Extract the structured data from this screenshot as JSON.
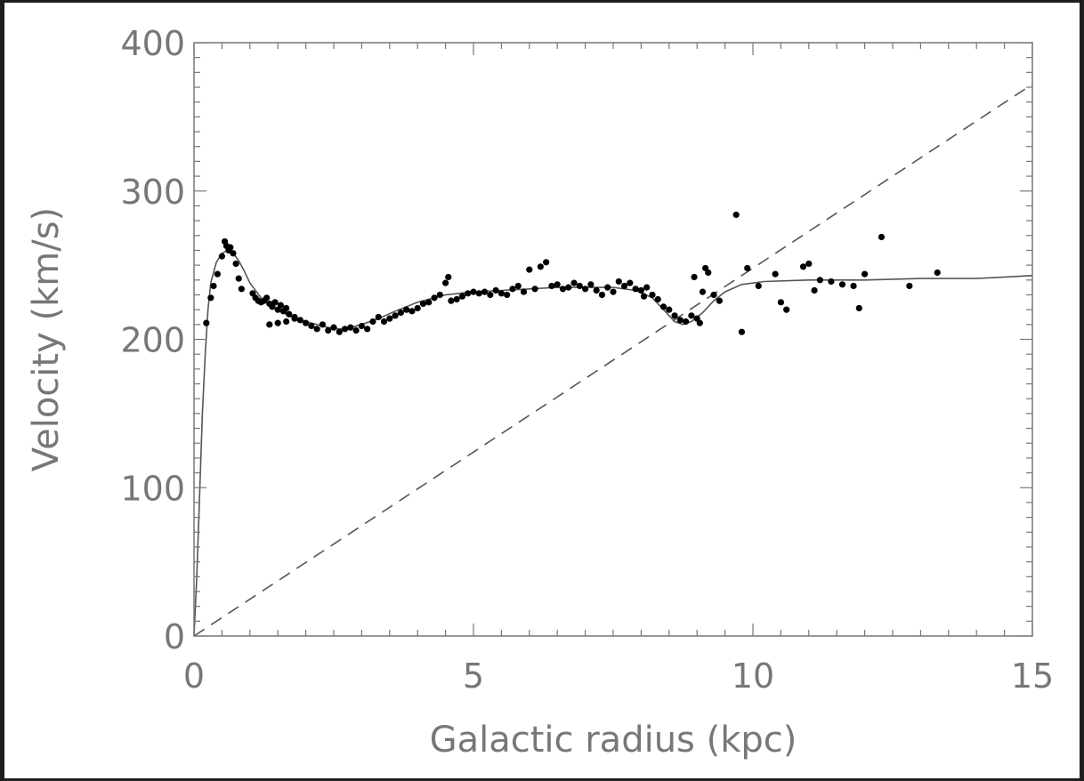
{
  "chart_data": {
    "type": "scatter",
    "title": "",
    "xlabel": "Galactic radius (kpc)",
    "ylabel": "Velocity (km/s)",
    "xlim": [
      0,
      15
    ],
    "ylim": [
      0,
      400
    ],
    "xticks": [
      "0",
      "5",
      "10",
      "15"
    ],
    "yticks": [
      "0",
      "100",
      "200",
      "300",
      "400"
    ],
    "grid": false,
    "legend": "none",
    "colors": {
      "points": "#000000",
      "lines": "#555555",
      "axes": "#777777"
    },
    "series": [
      {
        "kind": "points",
        "x": [
          0.22,
          0.3,
          0.35,
          0.42,
          0.5,
          0.55,
          0.58,
          0.62,
          0.65,
          0.7,
          0.75,
          0.8,
          0.85,
          1.05,
          1.1,
          1.15,
          1.2,
          1.25,
          1.3,
          1.35,
          1.4,
          1.45,
          1.5,
          1.55,
          1.6,
          1.65,
          1.7,
          1.8,
          1.35,
          1.5,
          1.65,
          1.8,
          1.9,
          2.0,
          2.1,
          2.2,
          2.3,
          2.4,
          2.5,
          2.6,
          2.7,
          2.8,
          2.9,
          3.0,
          3.1,
          3.2,
          3.3,
          3.4,
          3.5,
          3.6,
          3.7,
          3.8,
          3.9,
          4.0,
          4.1,
          4.2,
          4.3,
          4.4,
          4.5,
          4.55,
          4.6,
          4.7,
          4.8,
          4.9,
          5.0,
          5.1,
          5.2,
          5.3,
          5.4,
          5.5,
          5.6,
          5.7,
          5.8,
          5.9,
          6.0,
          6.1,
          6.2,
          6.3,
          6.4,
          6.5,
          6.6,
          6.7,
          6.8,
          6.9,
          7.0,
          7.1,
          7.2,
          7.3,
          7.4,
          7.5,
          7.6,
          7.7,
          7.8,
          7.9,
          8.0,
          8.05,
          8.1,
          8.2,
          8.3,
          8.4,
          8.5,
          8.6,
          8.7,
          8.8,
          8.9,
          9.0,
          9.1,
          9.2,
          9.3,
          9.4,
          8.95,
          9.05,
          9.15,
          9.7,
          9.8,
          9.9,
          10.1,
          10.4,
          10.5,
          10.6,
          10.9,
          11.0,
          11.1,
          11.2,
          11.4,
          11.6,
          11.8,
          11.9,
          12.0,
          12.3,
          12.8,
          13.3
        ],
        "y": [
          211,
          228,
          236,
          244,
          256,
          266,
          263,
          260,
          262,
          258,
          251,
          241,
          234,
          231,
          228,
          226,
          225,
          226,
          228,
          224,
          222,
          225,
          220,
          223,
          219,
          221,
          217,
          215,
          210,
          211,
          212,
          214,
          213,
          211,
          209,
          207,
          210,
          206,
          208,
          205,
          207,
          208,
          206,
          209,
          207,
          212,
          215,
          212,
          214,
          216,
          218,
          220,
          219,
          221,
          224,
          225,
          228,
          230,
          238,
          242,
          226,
          227,
          229,
          231,
          232,
          231,
          232,
          230,
          233,
          231,
          230,
          234,
          236,
          232,
          247,
          234,
          249,
          252,
          236,
          237,
          234,
          235,
          238,
          236,
          234,
          237,
          233,
          230,
          235,
          232,
          239,
          236,
          238,
          234,
          233,
          229,
          235,
          230,
          227,
          222,
          220,
          216,
          213,
          212,
          216,
          214,
          232,
          245,
          230,
          226,
          242,
          211,
          248,
          284,
          205,
          248,
          236,
          244,
          225,
          220,
          249,
          251,
          233,
          240,
          239,
          237,
          236,
          221,
          244,
          269,
          236,
          245
        ]
      },
      {
        "kind": "line-solid",
        "x": [
          0,
          0.05,
          0.1,
          0.15,
          0.2,
          0.25,
          0.3,
          0.4,
          0.5,
          0.6,
          0.7,
          0.8,
          0.9,
          1.0,
          1.2,
          1.4,
          1.6,
          1.8,
          2.0,
          2.2,
          2.4,
          2.6,
          2.8,
          3.0,
          3.3,
          3.6,
          4.0,
          4.5,
          5.0,
          5.5,
          6.0,
          6.5,
          7.0,
          7.5,
          7.9,
          8.2,
          8.4,
          8.6,
          8.75,
          8.9,
          9.1,
          9.3,
          9.5,
          9.8,
          10.2,
          11.0,
          12.0,
          13.0,
          14.0,
          15.0
        ],
        "y": [
          0,
          40,
          95,
          150,
          190,
          220,
          238,
          252,
          258,
          260,
          258,
          253,
          246,
          238,
          228,
          222,
          218,
          214,
          212,
          210,
          208,
          207,
          208,
          210,
          214,
          219,
          225,
          230,
          232,
          233,
          234,
          235,
          235,
          235,
          233,
          228,
          220,
          212,
          210,
          212,
          218,
          226,
          232,
          237,
          239,
          240,
          240,
          241,
          241,
          243
        ]
      },
      {
        "kind": "line-dashed",
        "x": [
          0,
          15
        ],
        "y": [
          0,
          372
        ]
      }
    ]
  }
}
